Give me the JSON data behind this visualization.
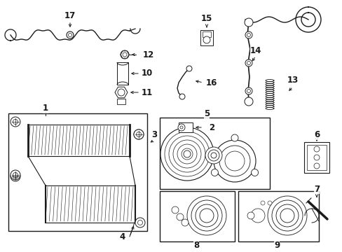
{
  "background_color": "#ffffff",
  "fig_width": 4.89,
  "fig_height": 3.6,
  "dpi": 100,
  "line_color": "#1a1a1a",
  "label_fontsize": 8.5,
  "label_fontsize_small": 7.0
}
